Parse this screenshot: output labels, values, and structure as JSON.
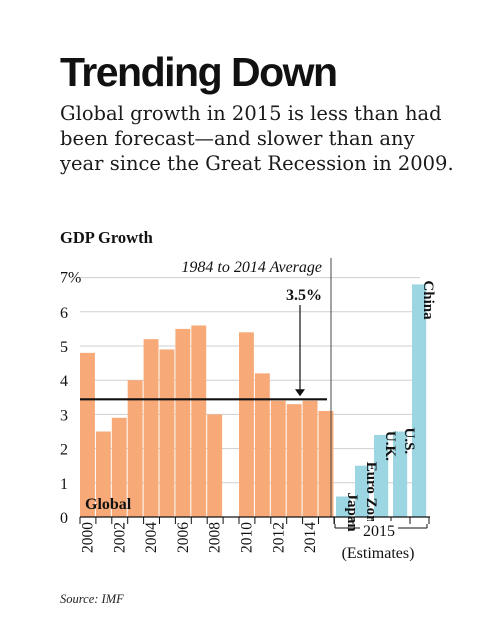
{
  "title": "Trending Down",
  "subtitle": "Global growth in 2015 is less than had been forecast—and slower than any year since the Great Recession in 2009.",
  "chart_label": "GDP Growth",
  "source": "Source: IMF",
  "chart_data": {
    "type": "bar",
    "ylim": [
      0,
      7
    ],
    "y_ticks": [
      "0",
      "1",
      "2",
      "3",
      "4",
      "5",
      "6",
      "7%"
    ],
    "grid": true,
    "global": {
      "label": "Global",
      "color": "#F7AA78",
      "years": [
        2000,
        2001,
        2002,
        2003,
        2004,
        2005,
        2006,
        2007,
        2008,
        2009,
        2010,
        2011,
        2012,
        2013,
        2014,
        2015
      ],
      "values": [
        4.8,
        2.5,
        2.9,
        4.0,
        5.2,
        4.9,
        5.5,
        5.6,
        3.0,
        null,
        5.4,
        4.2,
        3.4,
        3.3,
        3.4,
        3.1
      ],
      "x_tick_labels": [
        "2000",
        "2002",
        "2004",
        "2006",
        "2008",
        "2010",
        "2012",
        "2014"
      ]
    },
    "average": {
      "label": "1984 to 2014 Average",
      "value": 3.5,
      "value_label": "3.5%"
    },
    "estimates": {
      "group_label": "2015",
      "sub_label": "(Estimates)",
      "color": "#9DD6E3",
      "categories": [
        "Japan",
        "Euro Zone",
        "U.K.",
        "U.S.",
        "China"
      ],
      "values": [
        0.6,
        1.5,
        2.4,
        2.5,
        6.8
      ]
    }
  }
}
